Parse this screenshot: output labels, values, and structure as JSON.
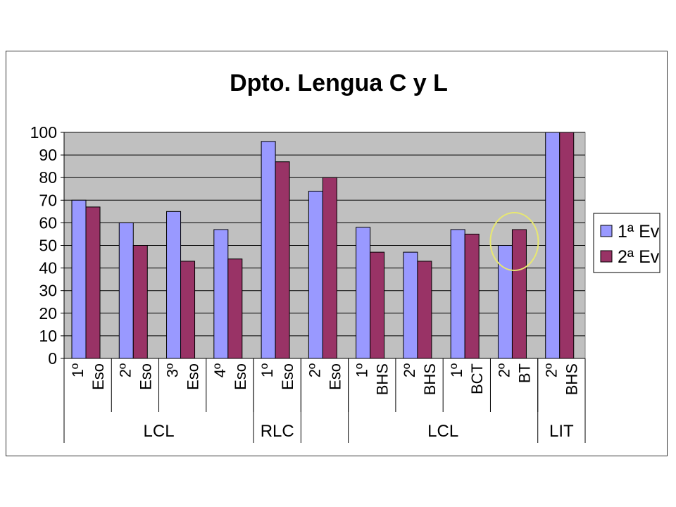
{
  "chart_data": {
    "type": "bar",
    "title": "Dpto. Lengua C y L",
    "ylim": [
      0,
      100
    ],
    "yticks": [
      "0",
      "10",
      "20",
      "30",
      "40",
      "50",
      "60",
      "70",
      "80",
      "90",
      "100"
    ],
    "grid": true,
    "legend_position": "right",
    "categories": [
      [
        "1º",
        "Eso"
      ],
      [
        "2º",
        "Eso"
      ],
      [
        "3º",
        "Eso"
      ],
      [
        "4º",
        "Eso"
      ],
      [
        "1º",
        "Eso"
      ],
      [
        "2º",
        "Eso"
      ],
      [
        "1º",
        "BHS"
      ],
      [
        "2º",
        "BHS"
      ],
      [
        "1º",
        "BCT"
      ],
      [
        "2º",
        "BT"
      ],
      [
        "2º",
        "BHS"
      ]
    ],
    "groups": [
      {
        "label": "LCL",
        "span": 4
      },
      {
        "label": "RLC",
        "span": 1
      },
      {
        "label": "",
        "span": 1
      },
      {
        "label": "LCL",
        "span": 4
      },
      {
        "label": "LIT",
        "span": 1
      }
    ],
    "series": [
      {
        "name": "1ª Ev",
        "color": "#9999ff",
        "values": [
          70,
          60,
          65,
          57,
          96,
          74,
          58,
          47,
          57,
          50,
          100
        ]
      },
      {
        "name": "2ª Ev",
        "color": "#993366",
        "values": [
          67,
          50,
          43,
          44,
          87,
          80,
          47,
          43,
          55,
          57,
          100
        ]
      }
    ],
    "plot_background": "#c0c0c0",
    "highlight": {
      "category_index": 9,
      "color": "#e8e870"
    }
  }
}
